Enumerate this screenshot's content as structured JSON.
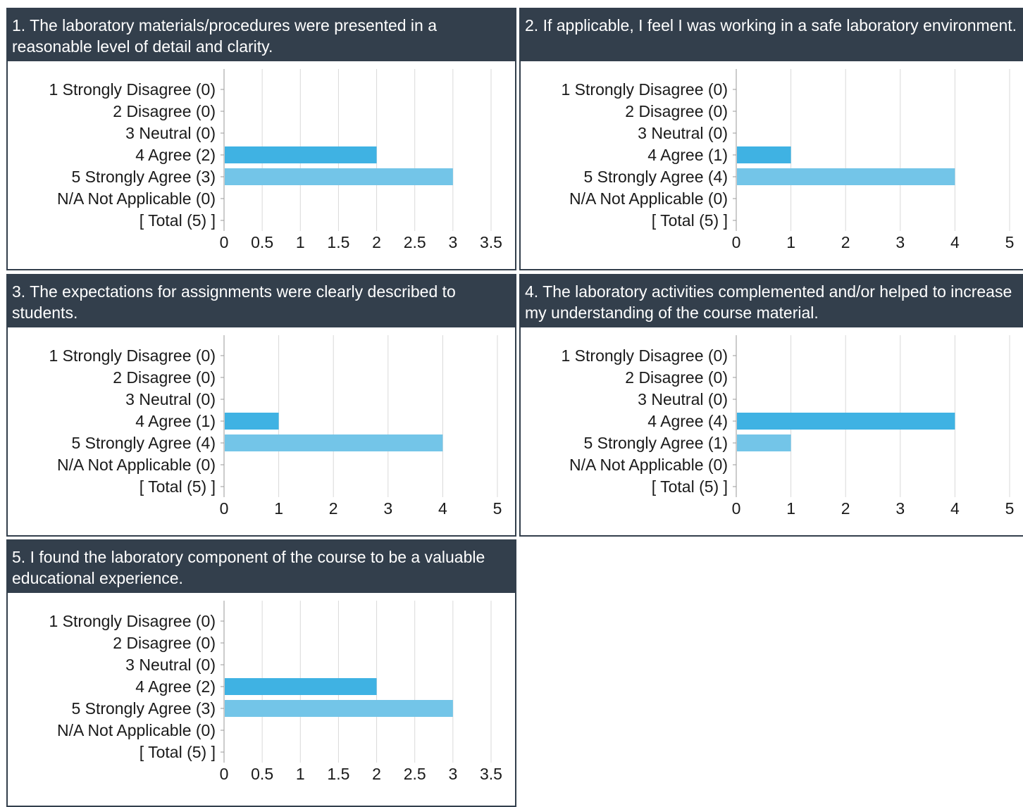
{
  "colors": {
    "header_bg": "#333f4c",
    "bar_agree": "#3fb2e3",
    "bar_strongly_agree": "#73c5e8"
  },
  "chart_data": [
    {
      "type": "bar",
      "orientation": "horizontal",
      "title": "1. The laboratory materials/procedures were presented in a reasonable level of detail and clarity.",
      "categories": [
        "1 Strongly Disagree (0)",
        "2 Disagree (0)",
        "3 Neutral (0)",
        "4 Agree (2)",
        "5 Strongly Agree (3)",
        "N/A Not Applicable (0)",
        "[ Total (5) ]"
      ],
      "values": [
        0,
        0,
        0,
        2,
        3,
        0,
        null
      ],
      "xlim": [
        0,
        3.5
      ],
      "xticks": [
        "0",
        "0.5",
        "1",
        "1.5",
        "2",
        "2.5",
        "3",
        "3.5"
      ],
      "grid": true
    },
    {
      "type": "bar",
      "orientation": "horizontal",
      "title": "2. If applicable, I feel I was working in a safe laboratory environment.",
      "categories": [
        "1 Strongly Disagree (0)",
        "2 Disagree (0)",
        "3 Neutral (0)",
        "4 Agree (1)",
        "5 Strongly Agree (4)",
        "N/A Not Applicable (0)",
        "[ Total (5) ]"
      ],
      "values": [
        0,
        0,
        0,
        1,
        4,
        0,
        null
      ],
      "xlim": [
        0,
        5
      ],
      "xticks": [
        "0",
        "1",
        "2",
        "3",
        "4",
        "5"
      ],
      "grid": true
    },
    {
      "type": "bar",
      "orientation": "horizontal",
      "title": "3. The expectations for assignments were clearly described to students.",
      "categories": [
        "1 Strongly Disagree (0)",
        "2 Disagree (0)",
        "3 Neutral (0)",
        "4 Agree (1)",
        "5 Strongly Agree (4)",
        "N/A Not Applicable (0)",
        "[ Total (5) ]"
      ],
      "values": [
        0,
        0,
        0,
        1,
        4,
        0,
        null
      ],
      "xlim": [
        0,
        5
      ],
      "xticks": [
        "0",
        "1",
        "2",
        "3",
        "4",
        "5"
      ],
      "grid": true
    },
    {
      "type": "bar",
      "orientation": "horizontal",
      "title": "4. The laboratory activities complemented and/or helped to increase my understanding of the course material.",
      "categories": [
        "1 Strongly Disagree (0)",
        "2 Disagree (0)",
        "3 Neutral (0)",
        "4 Agree (4)",
        "5 Strongly Agree (1)",
        "N/A Not Applicable (0)",
        "[ Total (5) ]"
      ],
      "values": [
        0,
        0,
        0,
        4,
        1,
        0,
        null
      ],
      "xlim": [
        0,
        5
      ],
      "xticks": [
        "0",
        "1",
        "2",
        "3",
        "4",
        "5"
      ],
      "grid": true
    },
    {
      "type": "bar",
      "orientation": "horizontal",
      "title": "5. I found the laboratory component of the course to be a valuable educational experience.",
      "categories": [
        "1 Strongly Disagree (0)",
        "2 Disagree (0)",
        "3 Neutral (0)",
        "4 Agree (2)",
        "5 Strongly Agree (3)",
        "N/A Not Applicable (0)",
        "[ Total (5) ]"
      ],
      "values": [
        0,
        0,
        0,
        2,
        3,
        0,
        null
      ],
      "xlim": [
        0,
        3.5
      ],
      "xticks": [
        "0",
        "0.5",
        "1",
        "1.5",
        "2",
        "2.5",
        "3",
        "3.5"
      ],
      "grid": true
    }
  ]
}
